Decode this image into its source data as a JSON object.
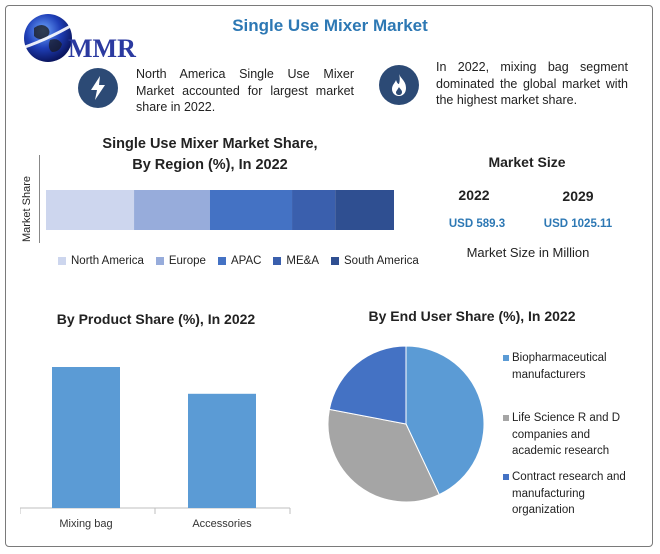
{
  "header": {
    "logo_text": "MMR",
    "title": "Single Use Mixer Market"
  },
  "highlights": [
    {
      "icon": "lightning-bolt-icon",
      "text": "North America Single Use Mixer Market accounted for largest market share in 2022."
    },
    {
      "icon": "flame-icon",
      "text": "In 2022, mixing bag segment dominated the global market with the highest market share."
    }
  ],
  "market_size": {
    "title": "Market Size",
    "year_1": "2022",
    "value_1": "USD 589.3",
    "year_2": "2029",
    "value_2": "USD 1025.11",
    "note": "Market Size in Million"
  },
  "colors": {
    "accent": "#2d78b4",
    "icon_bg": "#2c4a75"
  },
  "chart_data": [
    {
      "type": "bar",
      "orientation": "horizontal-stacked",
      "title_line1": "Single Use Mixer Market Share,",
      "title_line2": "By Region (%), In 2022",
      "ylabel": "Market Share",
      "series": [
        {
          "name": "North America",
          "values": [
            25.3
          ],
          "color": "#cdd6ee"
        },
        {
          "name": "Europe",
          "values": [
            21.8
          ],
          "color": "#97acdb"
        },
        {
          "name": "APAC",
          "values": [
            23.6
          ],
          "color": "#4472c4"
        },
        {
          "name": "ME&A",
          "values": [
            12.4
          ],
          "color": "#3a5fad"
        },
        {
          "name": "South America",
          "values": [
            16.9
          ],
          "color": "#2f4f91"
        }
      ],
      "legend_position": "bottom"
    },
    {
      "type": "bar",
      "title": "By Product Share (%), In 2022",
      "categories": [
        "Mixing bag",
        "Accessories"
      ],
      "values": [
        100,
        81
      ],
      "color": "#5b9bd5"
    },
    {
      "type": "pie",
      "title": "By End User Share (%), In 2022",
      "labels": [
        "Biopharmaceutical manufacturers",
        "Life Science R and D companies and academic research",
        "Contract research and manufacturing organization"
      ],
      "values": [
        43,
        35,
        22
      ],
      "colors": [
        "#5b9bd5",
        "#a5a5a5",
        "#4472c4"
      ],
      "legend_position": "right"
    }
  ]
}
